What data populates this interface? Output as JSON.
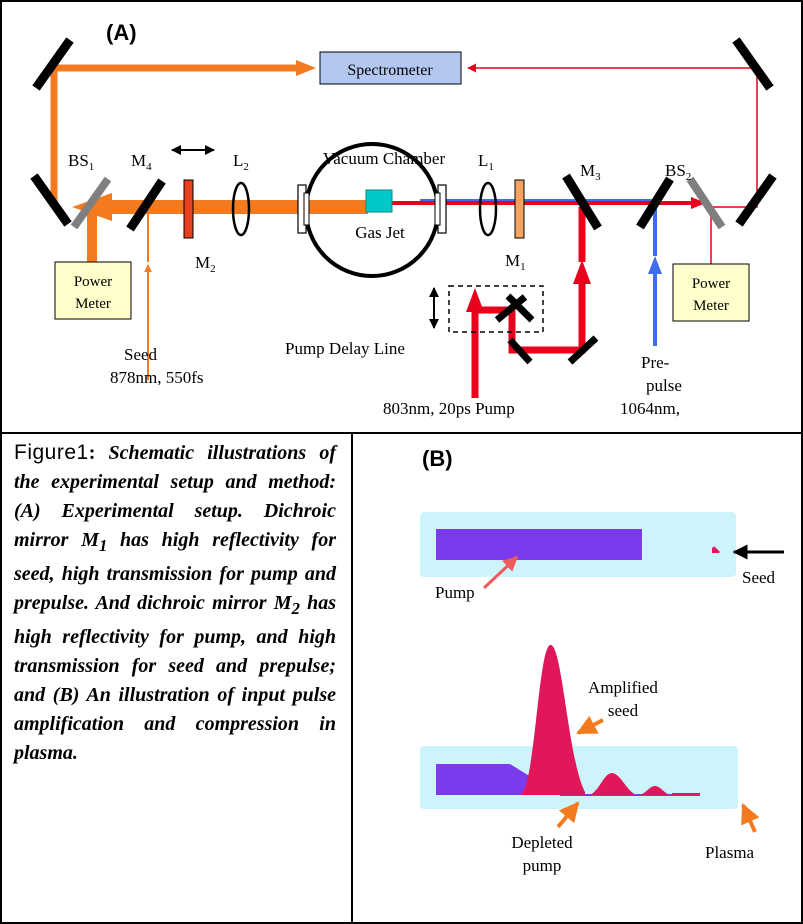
{
  "panel_a": {
    "label": "(A)",
    "spectrometer": "Spectrometer",
    "vacuum_chamber": "Vacuum Chamber",
    "gas_jet": "Gas Jet",
    "bs1": {
      "base": "BS",
      "sub": "1"
    },
    "bs2": {
      "base": "BS",
      "sub": "2"
    },
    "m1": {
      "base": "M",
      "sub": "1"
    },
    "m2": {
      "base": "M",
      "sub": "2"
    },
    "m3": {
      "base": "M",
      "sub": "3"
    },
    "m4": {
      "base": "M",
      "sub": "4"
    },
    "l1": {
      "base": "L",
      "sub": "1"
    },
    "l2": {
      "base": "L",
      "sub": "2"
    },
    "power_meter_left": [
      "Power",
      "Meter"
    ],
    "power_meter_right": [
      "Power",
      "Meter"
    ],
    "seed": [
      "Seed",
      "878nm, 550fs"
    ],
    "pump_delay_line": "Pump Delay Line",
    "pump_source": "803nm, 20ps Pump",
    "prepulse": [
      "Pre-",
      "pulse",
      "1064nm,"
    ]
  },
  "caption": {
    "lead": "Figure1",
    "colon": ":",
    "text": "Schematic illustrations of the experimental setup and method: (A) Experimental setup. Dichroic mirror M",
    "sub1": "1",
    "text2": " has high reflectivity for seed, high transmission for pump and prepulse. And dichroic mirror M",
    "sub2": "2",
    "text3": " has high reflectivity for pump, and high transmission for seed and prepulse; and (B) An illustration of input pulse amplification and compression in plasma."
  },
  "panel_b": {
    "label": "(B)",
    "pump": "Pump",
    "seed": "Seed",
    "amplified_seed": [
      "Amplified",
      "seed"
    ],
    "depleted_pump": [
      "Depleted",
      "pump"
    ],
    "plasma": "Plasma"
  },
  "colors": {
    "seed_orange": "#f47a20",
    "pump_red": "#e8001c",
    "prepulse_blue": "#3f6fe8",
    "spectrometer_fill": "#b3c7f0",
    "power_meter_fill": "#ffffcc",
    "gas_jet": "#00c8c8",
    "plasma_fill": "#cdf3fb",
    "pump_pulse": "#7c3aed",
    "amplified_pulse": "#e0185a"
  }
}
